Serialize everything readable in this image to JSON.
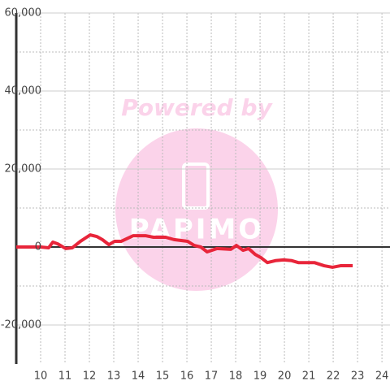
{
  "chart_data": {
    "type": "line",
    "watermark": {
      "text": "Powered by",
      "logo": "PAPIMO"
    },
    "x": [
      9,
      10,
      10.33,
      10.5,
      10.7,
      11.03,
      11.3,
      11.63,
      12.03,
      12.3,
      12.53,
      12.8,
      13.03,
      13.3,
      13.8,
      14.3,
      14.63,
      15.13,
      15.47,
      16.03,
      16.3,
      16.57,
      16.83,
      17.23,
      17.8,
      18.03,
      18.3,
      18.53,
      18.8,
      19.03,
      19.3,
      19.63,
      19.97,
      20.3,
      20.57,
      21.23,
      21.63,
      21.97,
      22.3,
      22.8
    ],
    "series": [
      {
        "color": "#e8253a",
        "values": [
          0,
          0,
          -200,
          1250,
          800,
          -400,
          -200,
          1450,
          3100,
          2700,
          1900,
          600,
          1450,
          1450,
          2900,
          2900,
          2500,
          2500,
          1900,
          1450,
          400,
          0,
          -1250,
          -400,
          -600,
          400,
          -850,
          -400,
          -1900,
          -2700,
          -4000,
          -3500,
          -3300,
          -3500,
          -4000,
          -4000,
          -4800,
          -5200,
          -4800,
          -4800
        ]
      }
    ],
    "xlim": [
      9,
      24.33
    ],
    "xticks": [
      10,
      11,
      12,
      13,
      14,
      15,
      16,
      17,
      18,
      19,
      20,
      21,
      22,
      23,
      24
    ],
    "ylim": [
      -30000,
      60000
    ],
    "yticks": [
      {
        "value": -20000,
        "label": "-20,000"
      },
      0,
      {
        "value": 20000,
        "label": "20,000"
      },
      {
        "value": 40000,
        "label": "40,000"
      },
      {
        "value": 60000,
        "label": "60,000"
      }
    ],
    "yminorticks": [
      -10000,
      10000,
      30000,
      50000
    ],
    "grid": true
  }
}
